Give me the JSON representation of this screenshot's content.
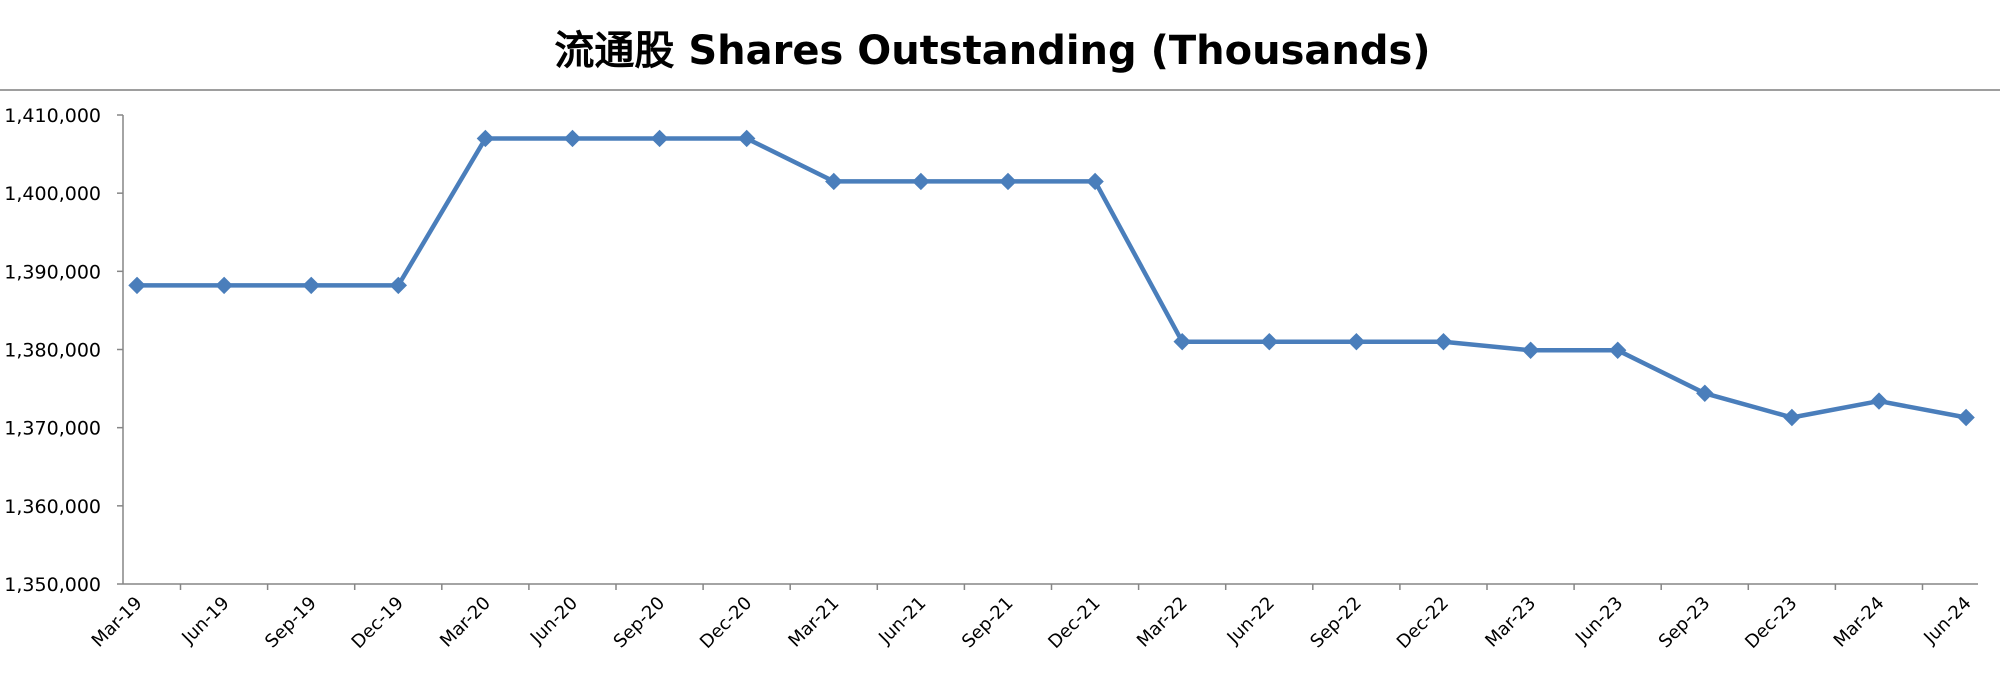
{
  "chart_data": {
    "type": "line",
    "title": "流通股 Shares Outstanding (Thousands)",
    "xlabel": "",
    "ylabel": "",
    "ylim": [
      1350000,
      1410000
    ],
    "yticks": [
      "1,350,000",
      "1,360,000",
      "1,370,000",
      "1,380,000",
      "1,390,000",
      "1,400,000",
      "1,410,000"
    ],
    "categories": [
      "Mar-19",
      "Jun-19",
      "Sep-19",
      "Dec-19",
      "Mar-20",
      "Jun-20",
      "Sep-20",
      "Dec-20",
      "Mar-21",
      "Jun-21",
      "Sep-21",
      "Dec-21",
      "Mar-22",
      "Jun-22",
      "Sep-22",
      "Dec-22",
      "Mar-23",
      "Jun-23",
      "Sep-23",
      "Dec-23",
      "Mar-24",
      "Jun-24"
    ],
    "series": [
      {
        "color": "#4a7ebb",
        "marker": "diamond",
        "values": [
          1388200,
          1388200,
          1388200,
          1388200,
          1407000,
          1407000,
          1407000,
          1407000,
          1401500,
          1401500,
          1401500,
          1401500,
          1381000,
          1381000,
          1381000,
          1381000,
          1379900,
          1379900,
          1374400,
          1371300,
          1373400,
          1371300
        ]
      }
    ],
    "grid": false,
    "legend": "none"
  }
}
